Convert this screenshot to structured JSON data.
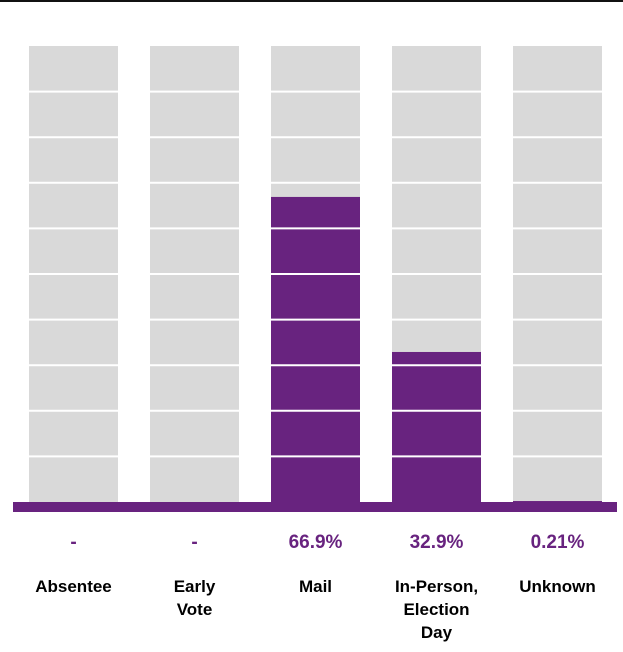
{
  "chart_data": {
    "type": "bar",
    "categories": [
      "Absentee",
      "Early Vote",
      "Mail",
      "In-Person, Election Day",
      "Unknown"
    ],
    "category_label_lines": [
      [
        "Absentee"
      ],
      [
        "Early",
        "Vote"
      ],
      [
        "Mail"
      ],
      [
        "In-Person,",
        "Election",
        "Day"
      ],
      [
        "Unknown"
      ]
    ],
    "values": [
      0,
      0,
      66.9,
      32.9,
      0.21
    ],
    "data_labels": [
      "-",
      "-",
      "66.9%",
      "32.9%",
      "0.21%"
    ],
    "title": "",
    "xlabel": "",
    "ylabel": "",
    "ylim": [
      0,
      100
    ],
    "grid": true,
    "colors": {
      "bar": "#68237f",
      "track": "#d9d9d9",
      "gridline": "#ffffff",
      "baseline": "#68237f",
      "value_label": "#68237f",
      "category_label": "#000000",
      "top_rule": "#111111"
    }
  }
}
